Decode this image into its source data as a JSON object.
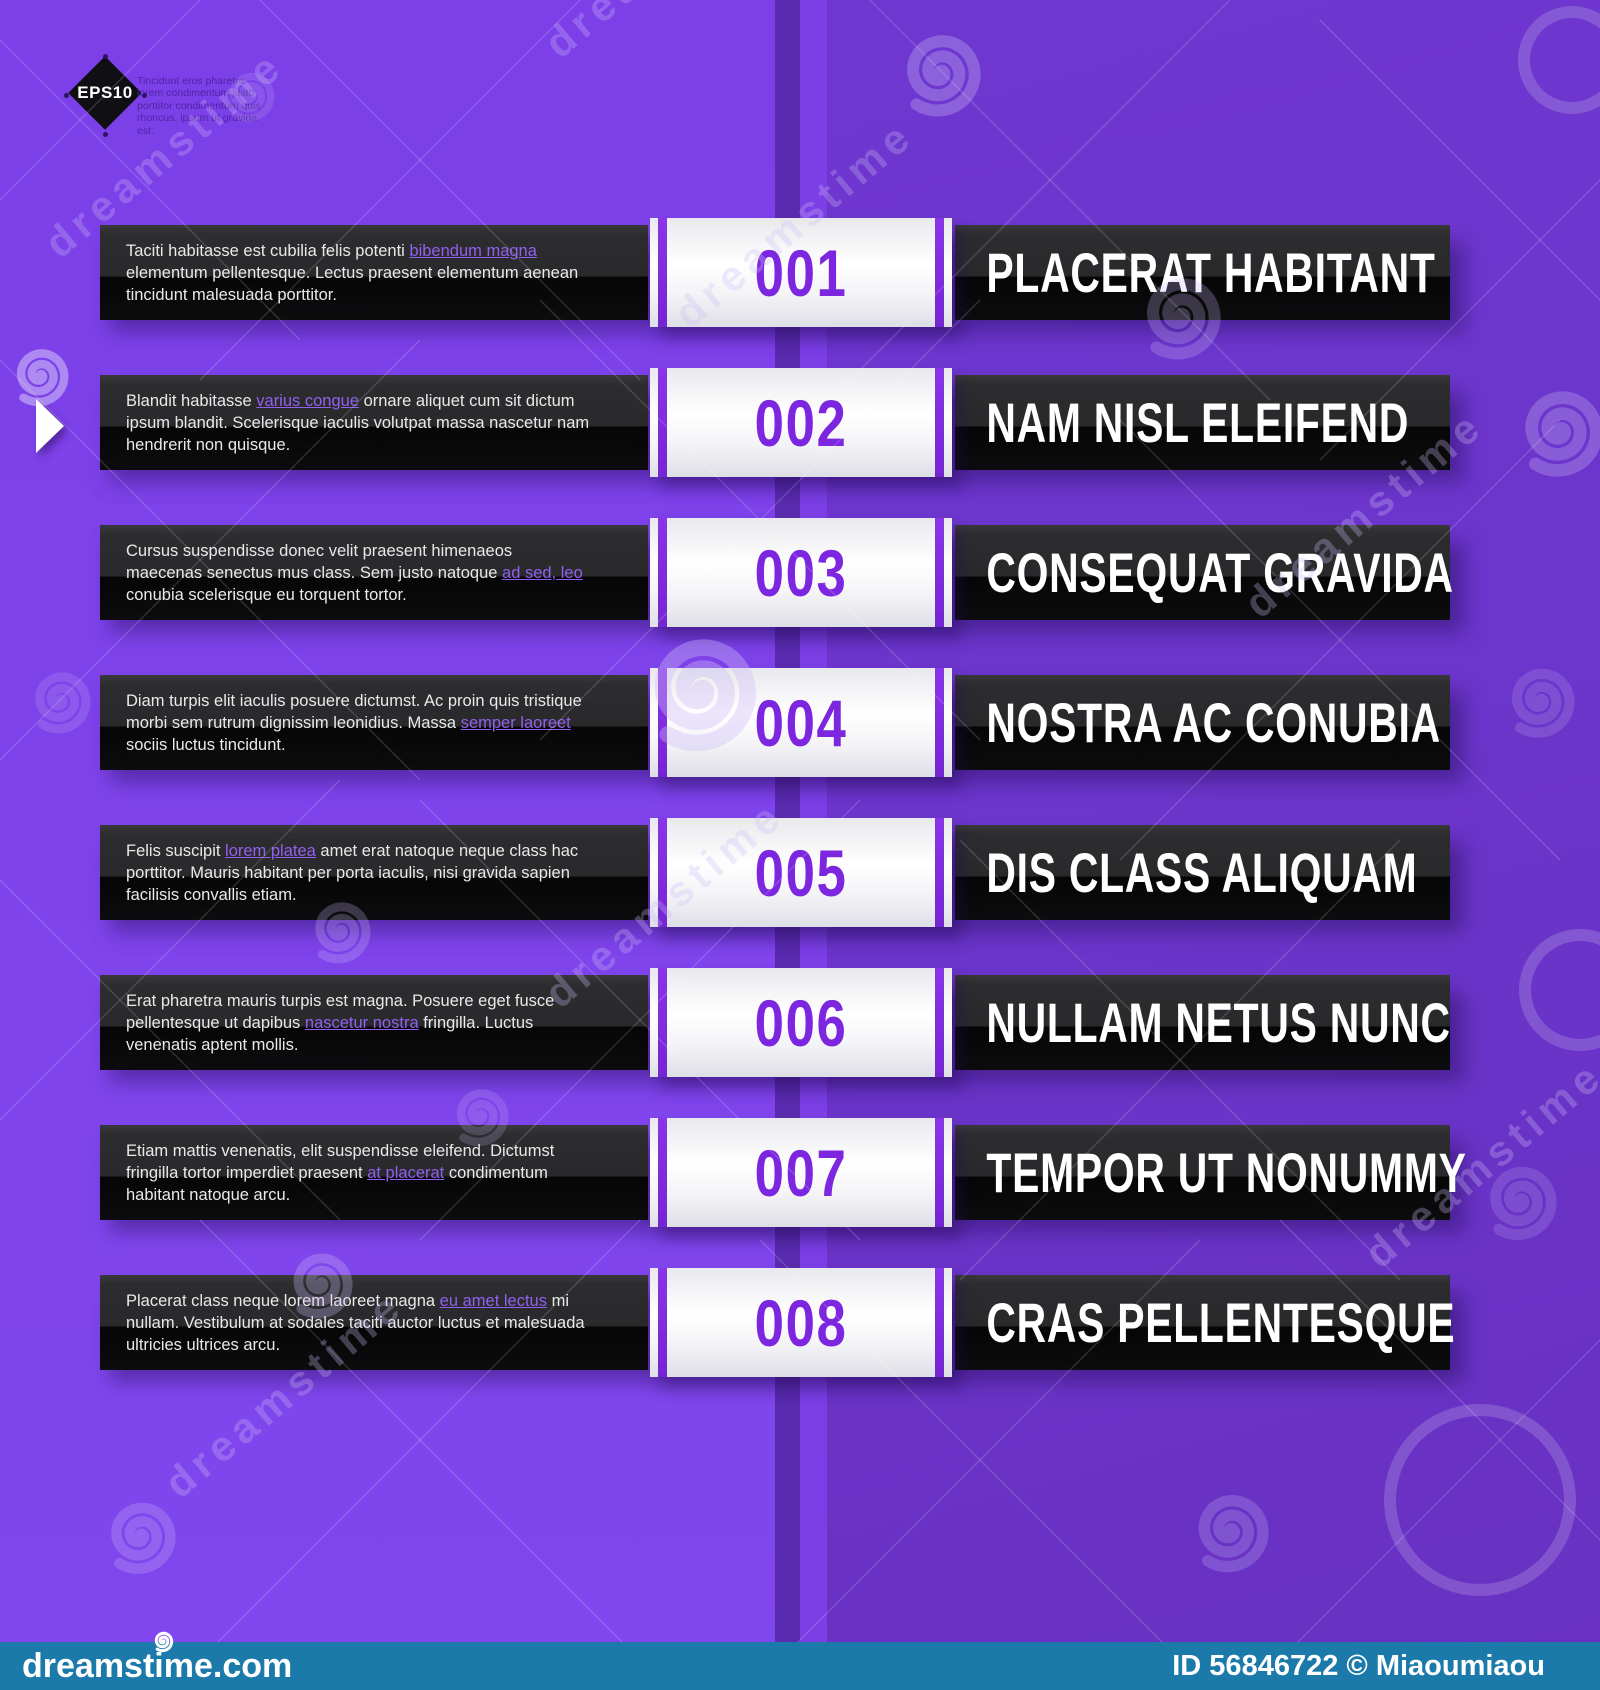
{
  "badge": {
    "label": "EPS10"
  },
  "header": {
    "note": "Tincidunt eros pharetra lorem condimentum justo porttitor condimentum quis rhoncus, ipsum ut gravida est."
  },
  "colors": {
    "background_left": "#7E42EA",
    "background_right": "#6C35CB",
    "spine_dark": "#5A2BAE",
    "bar_dark": "#0C0C0E",
    "accent_purple": "#7C27DF",
    "link_purple": "#9160EF",
    "watermark_bar_blue": "#1B7AAA",
    "title_white": "#FFFFFF"
  },
  "rows": [
    {
      "number": "001",
      "title": "PLACERAT HABITANT",
      "text_before": "Taciti habitasse est cubilia felis potenti ",
      "link_text": "bibendum magna",
      "text_after": " elementum pellentesque. Lectus praesent elementum aenean tincidunt malesuada porttitor."
    },
    {
      "number": "002",
      "title": "NAM NISL ELEIFEND",
      "text_before": "Blandit habitasse ",
      "link_text": "varius congue",
      "text_after": " ornare aliquet cum sit dictum ipsum blandit. Scelerisque iaculis volutpat massa nascetur nam hendrerit non quisque."
    },
    {
      "number": "003",
      "title": "CONSEQUAT GRAVIDA",
      "text_before": "Cursus suspendisse donec velit praesent himenaeos maecenas senectus mus class. Sem justo natoque ",
      "link_text": "ad sed, leo",
      "text_after": " conubia scelerisque eu torquent tortor."
    },
    {
      "number": "004",
      "title": "NOSTRA AC CONUBIA",
      "text_before": "Diam turpis elit iaculis posuere dictumst. Ac proin quis tristique morbi sem rutrum dignissim leonidius. Massa ",
      "link_text": "semper laoreet",
      "text_after": " sociis luctus tincidunt."
    },
    {
      "number": "005",
      "title": "DIS CLASS ALIQUAM",
      "text_before": "Felis suscipit ",
      "link_text": "lorem platea",
      "text_after": " amet erat natoque neque class hac porttitor. Mauris habitant per porta iaculis, nisi gravida sapien facilisis convallis etiam."
    },
    {
      "number": "006",
      "title": "NULLAM NETUS NUNC",
      "text_before": "Erat pharetra mauris turpis est magna. Posuere eget fusce pellentesque ut dapibus ",
      "link_text": "nascetur nostra",
      "text_after": " fringilla. Luctus venenatis aptent mollis."
    },
    {
      "number": "007",
      "title": "TEMPOR UT NONUMMY",
      "text_before": "Etiam mattis venenatis, elit suspendisse eleifend. Dictumst fringilla tortor imperdiet praesent ",
      "link_text": "at placerat",
      "text_after": " condimentum habitant natoque arcu."
    },
    {
      "number": "008",
      "title": "CRAS PELLENTESQUE",
      "text_before": "Placerat class neque lorem laoreet magna ",
      "link_text": "eu amet lectus",
      "text_after": " mi nullam. Vestibulum at sodales taciti auctor luctus et malesuada ultricies ultrices arcu."
    }
  ],
  "watermark": {
    "brand": "dreamstime",
    "logo": "dreamstime.com",
    "credit": "ID 56846722 © Miaoumiaou"
  }
}
